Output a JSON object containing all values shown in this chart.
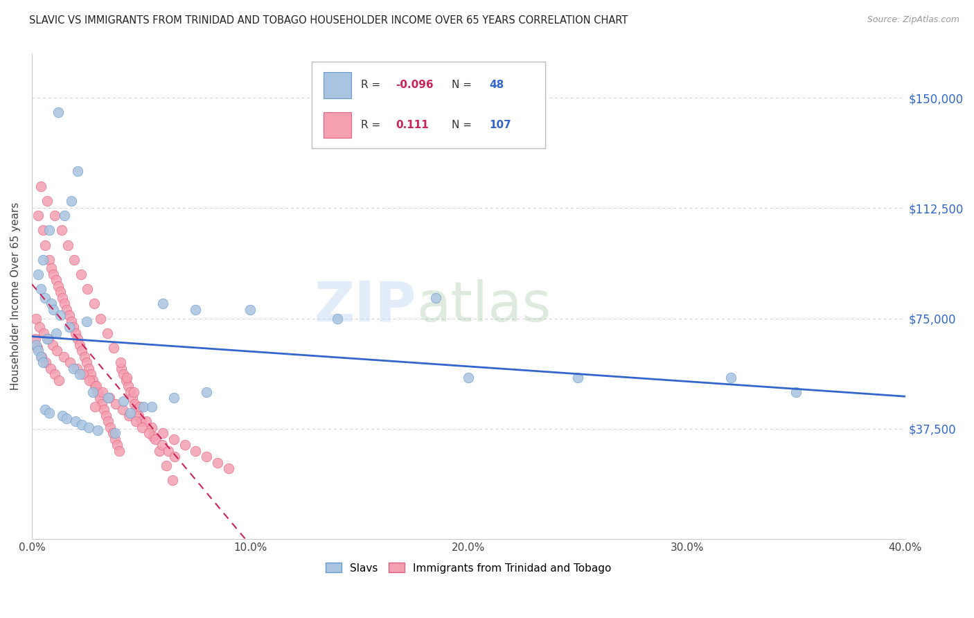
{
  "title": "SLAVIC VS IMMIGRANTS FROM TRINIDAD AND TOBAGO HOUSEHOLDER INCOME OVER 65 YEARS CORRELATION CHART",
  "source": "Source: ZipAtlas.com",
  "ylabel": "Householder Income Over 65 years",
  "xlabel_ticks": [
    "0.0%",
    "10.0%",
    "20.0%",
    "30.0%",
    "40.0%"
  ],
  "xlabel_vals": [
    0.0,
    10.0,
    20.0,
    30.0,
    40.0
  ],
  "ytick_labels": [
    "$37,500",
    "$75,000",
    "$112,500",
    "$150,000"
  ],
  "ytick_vals": [
    37500,
    75000,
    112500,
    150000
  ],
  "xlim": [
    0.0,
    40.0
  ],
  "ylim": [
    0,
    165000
  ],
  "slavs_color": "#a8c4e0",
  "trinidad_color": "#f4a0b0",
  "slavs_edge": "#6699cc",
  "trinidad_edge": "#e06080",
  "trend_slavs_color": "#3366cc",
  "trend_trinidad_color": "#cc2255",
  "legend_R_slavs": "-0.096",
  "legend_N_slavs": "48",
  "legend_R_trinidad": "0.111",
  "legend_N_trinidad": "107",
  "legend_label_slavs": "Slavs",
  "legend_label_trinidad": "Immigrants from Trinidad and Tobago",
  "slavs_x": [
    1.2,
    2.1,
    1.8,
    1.5,
    0.8,
    0.5,
    0.3,
    0.4,
    0.6,
    0.9,
    1.0,
    1.3,
    2.5,
    1.7,
    1.1,
    0.7,
    0.2,
    0.3,
    0.4,
    0.5,
    6.0,
    7.5,
    14.0,
    18.5,
    25.0,
    32.0,
    1.9,
    2.2,
    2.8,
    3.5,
    4.2,
    5.1,
    0.6,
    0.8,
    1.4,
    1.6,
    2.0,
    2.3,
    2.6,
    3.0,
    3.8,
    4.5,
    5.5,
    6.5,
    8.0,
    10.0,
    20.0,
    35.0
  ],
  "slavs_y": [
    145000,
    125000,
    115000,
    110000,
    105000,
    95000,
    90000,
    85000,
    82000,
    80000,
    78000,
    76000,
    74000,
    72000,
    70000,
    68000,
    66000,
    64000,
    62000,
    60000,
    80000,
    78000,
    75000,
    82000,
    55000,
    55000,
    58000,
    56000,
    50000,
    48000,
    47000,
    45000,
    44000,
    43000,
    42000,
    41000,
    40000,
    39000,
    38000,
    37000,
    36000,
    43000,
    45000,
    48000,
    50000,
    78000,
    55000,
    50000
  ],
  "trinidad_x": [
    0.3,
    0.5,
    0.6,
    0.8,
    0.9,
    1.0,
    1.1,
    1.2,
    1.3,
    1.4,
    1.5,
    1.6,
    1.7,
    1.8,
    1.9,
    2.0,
    2.1,
    2.2,
    2.3,
    2.4,
    2.5,
    2.6,
    2.7,
    2.8,
    2.9,
    3.0,
    3.1,
    3.2,
    3.3,
    3.4,
    3.5,
    3.6,
    3.7,
    3.8,
    3.9,
    4.0,
    4.1,
    4.2,
    4.3,
    4.4,
    4.5,
    4.6,
    4.7,
    4.8,
    4.9,
    5.0,
    5.5,
    6.0,
    6.5,
    7.0,
    7.5,
    8.0,
    8.5,
    9.0,
    0.4,
    0.7,
    1.05,
    1.35,
    1.65,
    1.95,
    2.25,
    2.55,
    2.85,
    3.15,
    3.45,
    3.75,
    4.05,
    4.35,
    4.65,
    4.95,
    5.25,
    5.55,
    5.85,
    6.15,
    6.45,
    0.2,
    0.35,
    0.55,
    0.75,
    0.95,
    1.15,
    1.45,
    1.75,
    2.05,
    2.35,
    2.65,
    2.95,
    3.25,
    3.55,
    3.85,
    4.15,
    4.45,
    4.75,
    5.05,
    5.35,
    5.65,
    5.95,
    6.25,
    6.55,
    2.9,
    0.15,
    0.25,
    0.45,
    0.65,
    0.85,
    1.05,
    1.25
  ],
  "trinidad_y": [
    110000,
    105000,
    100000,
    95000,
    92000,
    90000,
    88000,
    86000,
    84000,
    82000,
    80000,
    78000,
    76000,
    74000,
    72000,
    70000,
    68000,
    66000,
    64000,
    62000,
    60000,
    58000,
    56000,
    54000,
    52000,
    50000,
    48000,
    46000,
    44000,
    42000,
    40000,
    38000,
    36000,
    34000,
    32000,
    30000,
    58000,
    56000,
    54000,
    52000,
    50000,
    48000,
    46000,
    44000,
    42000,
    40000,
    38000,
    36000,
    34000,
    32000,
    30000,
    28000,
    26000,
    24000,
    120000,
    115000,
    110000,
    105000,
    100000,
    95000,
    90000,
    85000,
    80000,
    75000,
    70000,
    65000,
    60000,
    55000,
    50000,
    45000,
    40000,
    35000,
    30000,
    25000,
    20000,
    75000,
    72000,
    70000,
    68000,
    66000,
    64000,
    62000,
    60000,
    58000,
    56000,
    54000,
    52000,
    50000,
    48000,
    46000,
    44000,
    42000,
    40000,
    38000,
    36000,
    34000,
    32000,
    30000,
    28000,
    45000,
    68000,
    65000,
    62000,
    60000,
    58000,
    56000,
    54000
  ]
}
